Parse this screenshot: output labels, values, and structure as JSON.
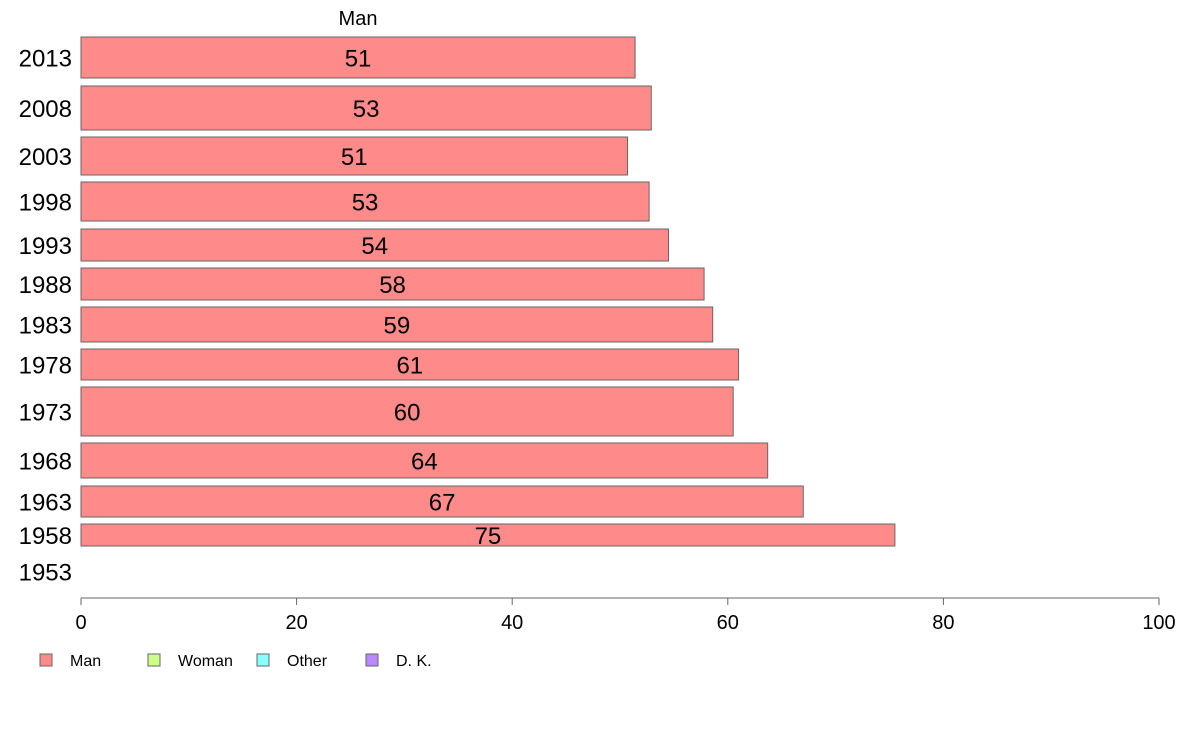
{
  "chart_data": {
    "type": "bar",
    "orientation": "horizontal",
    "column_header": "Man",
    "categories": [
      "2013",
      "2008",
      "2003",
      "1998",
      "1993",
      "1988",
      "1983",
      "1978",
      "1973",
      "1968",
      "1963",
      "1958",
      "1953"
    ],
    "series": [
      {
        "name": "Man",
        "color": "#ff8a8a",
        "values": [
          51.4,
          52.9,
          50.7,
          52.7,
          54.5,
          57.8,
          58.6,
          61.0,
          60.5,
          63.7,
          67.0,
          75.5,
          null
        ],
        "labels": [
          "51",
          "53",
          "51",
          "53",
          "54",
          "58",
          "59",
          "61",
          "60",
          "64",
          "67",
          "75",
          ""
        ]
      }
    ],
    "xlim": [
      0,
      100
    ],
    "xticks": [
      "0",
      "20",
      "40",
      "60",
      "80",
      "100"
    ],
    "legend": {
      "position": "bottom-left",
      "entries": [
        {
          "label": "Man",
          "color": "#ff8a8a"
        },
        {
          "label": "Woman",
          "color": "#ccff88"
        },
        {
          "label": "Other",
          "color": "#88ffff"
        },
        {
          "label": "D. K.",
          "color": "#bb88ff"
        }
      ]
    }
  }
}
